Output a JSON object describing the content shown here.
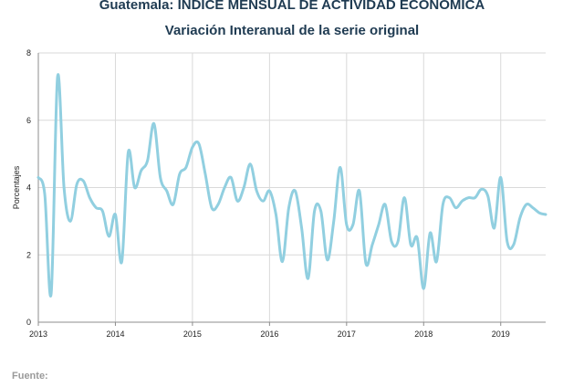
{
  "header": {
    "title": "Guatemala: INDICE MENSUAL DE ACTIVIDAD ECONOMICA",
    "subtitle": "Variación Interanual de la serie original"
  },
  "footer": {
    "source_label": "Fuente:"
  },
  "colors": {
    "line": "#91cfe0",
    "grid": "#d9d9d9",
    "axis": "#8c8c8c"
  },
  "chart_data": {
    "type": "line",
    "title": "Guatemala: INDICE MENSUAL DE ACTIVIDAD ECONOMICA",
    "subtitle": "Variación Interanual de la serie original",
    "xlabel": "",
    "ylabel": "Porcentajes",
    "ylim": [
      0,
      8
    ],
    "yticks": [
      0,
      2,
      4,
      6,
      8
    ],
    "xlim": [
      "2013-01",
      "2019-08"
    ],
    "xtick_labels": [
      "2013",
      "2014",
      "2015",
      "2016",
      "2017",
      "2018",
      "2019"
    ],
    "grid": {
      "horizontal": true,
      "vertical": true
    },
    "legend": "none",
    "series": [
      {
        "x": [
          "2013-01",
          "2013-02",
          "2013-03",
          "2013-04",
          "2013-05",
          "2013-06",
          "2013-07",
          "2013-08",
          "2013-09",
          "2013-10",
          "2013-11",
          "2013-12",
          "2014-01",
          "2014-02",
          "2014-03",
          "2014-04",
          "2014-05",
          "2014-06",
          "2014-07",
          "2014-08",
          "2014-09",
          "2014-10",
          "2014-11",
          "2014-12",
          "2015-01",
          "2015-02",
          "2015-03",
          "2015-04",
          "2015-05",
          "2015-06",
          "2015-07",
          "2015-08",
          "2015-09",
          "2015-10",
          "2015-11",
          "2015-12",
          "2016-01",
          "2016-02",
          "2016-03",
          "2016-04",
          "2016-05",
          "2016-06",
          "2016-07",
          "2016-08",
          "2016-09",
          "2016-10",
          "2016-11",
          "2016-12",
          "2017-01",
          "2017-02",
          "2017-03",
          "2017-04",
          "2017-05",
          "2017-06",
          "2017-07",
          "2017-08",
          "2017-09",
          "2017-10",
          "2017-11",
          "2017-12",
          "2018-01",
          "2018-02",
          "2018-03",
          "2018-04",
          "2018-05",
          "2018-06",
          "2018-07",
          "2018-08",
          "2018-09",
          "2018-10",
          "2018-11",
          "2018-12",
          "2019-01",
          "2019-02",
          "2019-03",
          "2019-04",
          "2019-05",
          "2019-06",
          "2019-07",
          "2019-08"
        ],
        "values": [
          4.3,
          3.8,
          0.85,
          7.3,
          4.0,
          3.0,
          4.1,
          4.2,
          3.7,
          3.4,
          3.3,
          2.55,
          3.2,
          1.8,
          5.05,
          4.0,
          4.5,
          4.8,
          5.9,
          4.3,
          3.9,
          3.5,
          4.4,
          4.6,
          5.2,
          5.3,
          4.4,
          3.4,
          3.5,
          4.0,
          4.3,
          3.6,
          4.0,
          4.7,
          3.9,
          3.6,
          3.9,
          3.2,
          1.8,
          3.4,
          3.9,
          2.8,
          1.3,
          3.3,
          3.3,
          1.85,
          3.0,
          4.6,
          2.9,
          2.9,
          3.9,
          1.75,
          2.3,
          2.9,
          3.5,
          2.4,
          2.4,
          3.7,
          2.3,
          2.5,
          1.0,
          2.65,
          1.8,
          3.5,
          3.7,
          3.4,
          3.6,
          3.7,
          3.7,
          3.95,
          3.75,
          2.8,
          4.3,
          2.4,
          2.3,
          3.1,
          3.5,
          3.4,
          3.25,
          3.2
        ]
      }
    ]
  }
}
